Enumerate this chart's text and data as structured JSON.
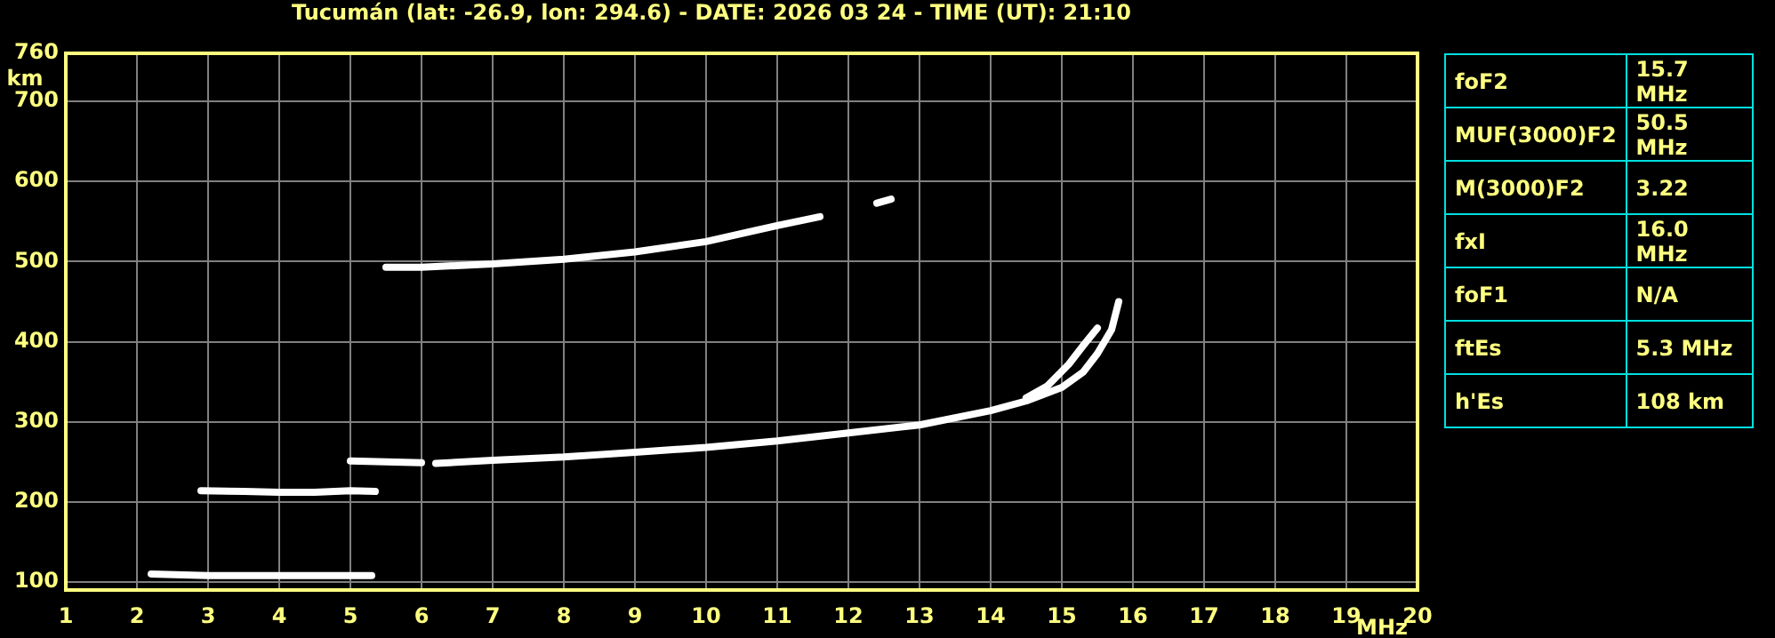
{
  "chart_data": [
    {
      "type": "line",
      "title": "Tucumán (lat: -26.9, lon: 294.6) - DATE: 2026 03 24 - TIME (UT): 21:10",
      "xlabel": "MHz",
      "ylabel": "km",
      "xlim": [
        1,
        20
      ],
      "xticks": [
        1,
        2,
        3,
        4,
        5,
        6,
        7,
        8,
        9,
        10,
        11,
        12,
        13,
        14,
        15,
        16,
        17,
        18,
        19,
        20
      ],
      "ylim": [
        90,
        760
      ],
      "yticks": [
        100,
        200,
        300,
        400,
        500,
        600,
        700,
        760
      ],
      "grid": true,
      "legend": false,
      "marker": "none",
      "series": [
        {
          "color": "#ffffff",
          "x": [
            2.2,
            3,
            4,
            5,
            5.3
          ],
          "values": [
            110,
            108,
            108,
            108,
            108
          ]
        },
        {
          "color": "#ffffff",
          "x": [
            2.9,
            3.5,
            4,
            4.5,
            5,
            5.35
          ],
          "values": [
            214,
            213,
            212,
            212,
            214,
            213
          ]
        },
        {
          "color": "#ffffff",
          "x": [
            5,
            5.5,
            6
          ],
          "values": [
            251,
            250,
            249
          ]
        },
        {
          "color": "#ffffff",
          "x": [
            6.2,
            7,
            8,
            9,
            10,
            11,
            12,
            13,
            14,
            14.5,
            15,
            15.3,
            15.5,
            15.7,
            15.8
          ],
          "values": [
            248,
            252,
            256,
            262,
            268,
            276,
            286,
            296,
            314,
            326,
            343,
            362,
            385,
            415,
            450
          ]
        },
        {
          "color": "#ffffff",
          "x": [
            14.5,
            14.8,
            15.1,
            15.3,
            15.5
          ],
          "values": [
            330,
            345,
            372,
            395,
            417
          ]
        },
        {
          "color": "#ffffff",
          "x": [
            5.5,
            6,
            7,
            8,
            9,
            10,
            11,
            11.6
          ],
          "values": [
            493,
            493,
            497,
            503,
            512,
            525,
            545,
            556
          ]
        },
        {
          "color": "#ffffff",
          "x": [
            12.4,
            12.6
          ],
          "values": [
            573,
            578
          ]
        }
      ]
    },
    {
      "type": "other",
      "annotations": [
        "foF2",
        "15.7 MHz",
        "MUF(3000)F2",
        "50.5 MHz",
        "M(3000)F2",
        "3.22",
        "fxI",
        "16.0 MHz",
        "foF1",
        "N/A",
        "ftEs",
        "5.3 MHz",
        "h'Es",
        "108 km"
      ]
    }
  ]
}
